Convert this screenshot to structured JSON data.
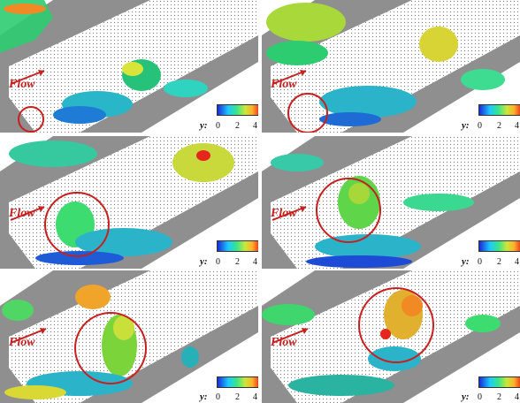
{
  "figure": {
    "panels": [
      {
        "flow_label": "Flow",
        "legend": {
          "variable": "y:",
          "ticks": [
            "0",
            "2",
            "4"
          ]
        }
      },
      {
        "flow_label": "Flow",
        "legend": {
          "variable": "y:",
          "ticks": [
            "0",
            "2",
            "4"
          ]
        }
      },
      {
        "flow_label": "Flow",
        "legend": {
          "variable": "y:",
          "ticks": [
            "0",
            "2",
            "4"
          ]
        }
      },
      {
        "flow_label": "Flow",
        "legend": {
          "variable": "y:",
          "ticks": [
            "0",
            "2",
            "4"
          ]
        }
      },
      {
        "flow_label": "Flow",
        "legend": {
          "variable": "y:",
          "ticks": [
            "0",
            "2",
            "4"
          ]
        }
      },
      {
        "flow_label": "Flow",
        "legend": {
          "variable": "y:",
          "ticks": [
            "0",
            "2",
            "4"
          ]
        }
      }
    ],
    "colors": {
      "annotation": "#c8201e",
      "wall": "#8c8c8c",
      "colormap": [
        "#1a2bd6",
        "#1ec8ff",
        "#38e58a",
        "#c8e83a",
        "#ffb02a",
        "#e5261c"
      ]
    }
  }
}
